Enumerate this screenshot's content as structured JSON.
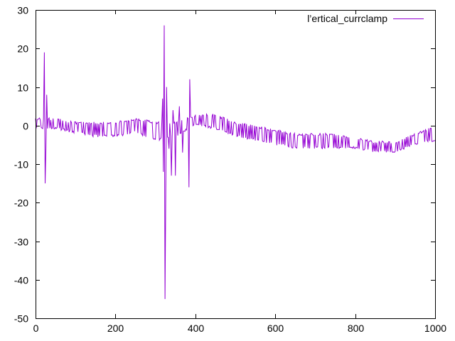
{
  "chart_data": {
    "type": "line",
    "title": "",
    "xlabel": "",
    "ylabel": "",
    "xlim": [
      0,
      1000
    ],
    "ylim": [
      -50,
      30
    ],
    "x_ticks": [
      0,
      200,
      400,
      600,
      800,
      1000
    ],
    "y_ticks": [
      -50,
      -40,
      -30,
      -20,
      -10,
      0,
      10,
      20,
      30
    ],
    "grid": false,
    "legend_position": "top-right",
    "series": [
      {
        "name": "l’ertical_currclamp",
        "color": "#9400d3",
        "approximate_envelope": {
          "x": [
            0,
            50,
            100,
            150,
            200,
            250,
            300,
            350,
            400,
            450,
            500,
            550,
            600,
            650,
            700,
            750,
            800,
            850,
            900,
            950,
            1000
          ],
          "upper": [
            2,
            2,
            1,
            1,
            1,
            2,
            1,
            1,
            3,
            3,
            1,
            0,
            -1,
            -2,
            -2,
            -2,
            -3,
            -4,
            -4,
            -2,
            0
          ],
          "lower": [
            -1,
            -1,
            -2,
            -3,
            -3,
            -2,
            -4,
            -3,
            0,
            -1,
            -3,
            -4,
            -5,
            -6,
            -6,
            -6,
            -6,
            -7,
            -7,
            -5,
            -4
          ]
        },
        "spikes": [
          {
            "x": 23,
            "y": 19
          },
          {
            "x": 24,
            "y": -15
          },
          {
            "x": 26,
            "y": -6
          },
          {
            "x": 28,
            "y": 8
          },
          {
            "x": 318,
            "y": 7
          },
          {
            "x": 320,
            "y": -12
          },
          {
            "x": 322,
            "y": 26
          },
          {
            "x": 324,
            "y": -45
          },
          {
            "x": 326,
            "y": -17
          },
          {
            "x": 328,
            "y": 10
          },
          {
            "x": 335,
            "y": -6
          },
          {
            "x": 340,
            "y": -13
          },
          {
            "x": 345,
            "y": 4
          },
          {
            "x": 350,
            "y": -13
          },
          {
            "x": 360,
            "y": 5
          },
          {
            "x": 368,
            "y": -7
          },
          {
            "x": 385,
            "y": -16
          },
          {
            "x": 387,
            "y": 12
          }
        ]
      }
    ]
  }
}
